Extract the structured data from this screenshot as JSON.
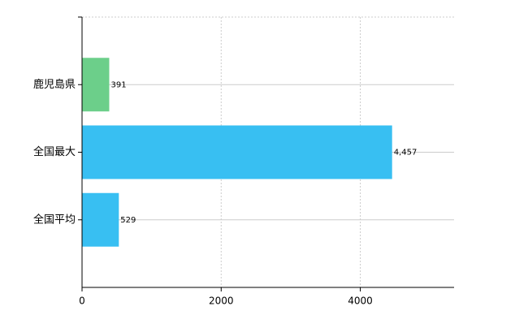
{
  "chart_data": {
    "type": "bar",
    "orientation": "horizontal",
    "categories": [
      "鹿児島県",
      "全国最大",
      "全国平均"
    ],
    "values": [
      391,
      4457,
      529
    ],
    "value_labels": [
      "391",
      "4,457",
      "529"
    ],
    "colors": [
      "#6ccf8a",
      "#38bff2",
      "#38bff2"
    ],
    "xlim": [
      0,
      5348
    ],
    "xticks": [
      0,
      2000,
      4000
    ],
    "grid": true
  }
}
